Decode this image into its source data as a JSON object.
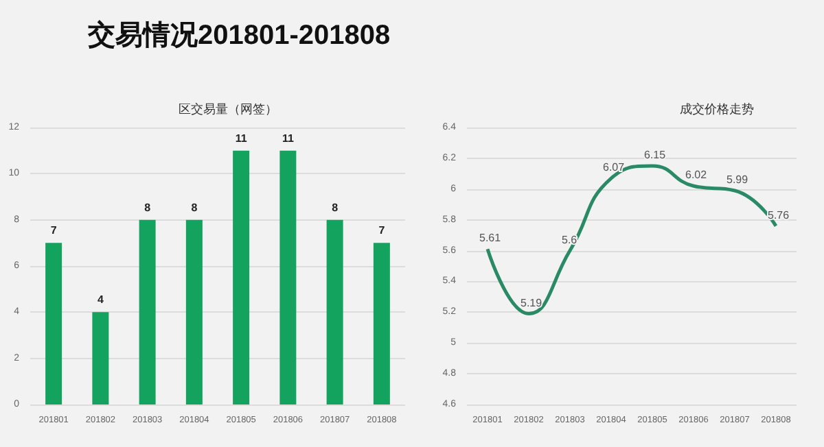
{
  "chart_data": [
    {
      "type": "bar",
      "title": "区交易量（网签）",
      "annotations": [
        "交易情况201801-201808"
      ],
      "categories": [
        "201801",
        "201802",
        "201803",
        "201804",
        "201805",
        "201806",
        "201807",
        "201808"
      ],
      "values": [
        7,
        4,
        8,
        8,
        11,
        11,
        8,
        7
      ],
      "color": "#14a35f",
      "ylim": [
        0,
        12
      ],
      "yticks": [
        0,
        2,
        4,
        6,
        8,
        10,
        12
      ],
      "grid": "y",
      "data_labels": true
    },
    {
      "type": "line",
      "title": "成交价格走势",
      "categories": [
        "201801",
        "201802",
        "201803",
        "201804",
        "201805",
        "201806",
        "201807",
        "201808"
      ],
      "values": [
        5.61,
        5.19,
        5.6,
        6.07,
        6.15,
        6.02,
        5.99,
        5.76
      ],
      "color": "#2a8a66",
      "ylim": [
        4.6,
        6.4
      ],
      "yticks": [
        4.6,
        4.8,
        5,
        5.2,
        5.4,
        5.6,
        5.8,
        6,
        6.2,
        6.4
      ],
      "grid": "y",
      "data_labels": true,
      "marker": "none"
    }
  ]
}
